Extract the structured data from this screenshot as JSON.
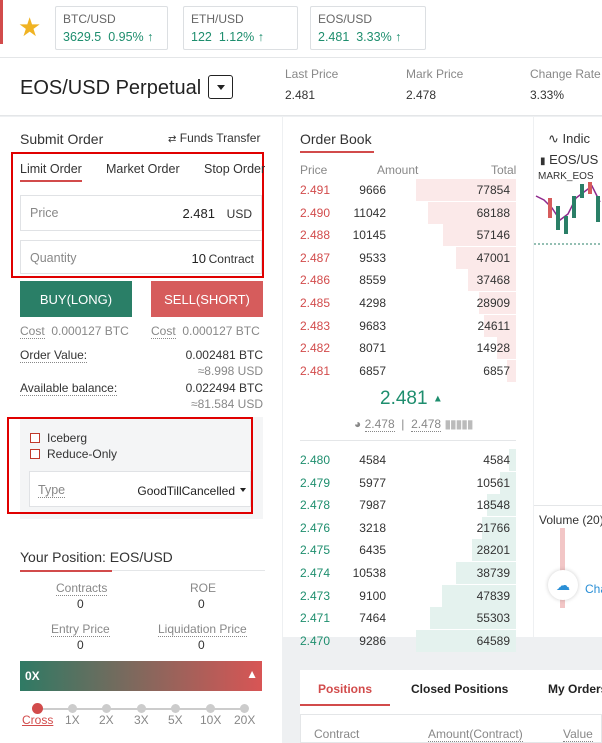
{
  "tickers": [
    {
      "symbol": "BTC/USD",
      "price": "3629.5",
      "change": "0.95%"
    },
    {
      "symbol": "ETH/USD",
      "price": "122",
      "change": "1.12%"
    },
    {
      "symbol": "EOS/USD",
      "price": "2.481",
      "change": "3.33%"
    }
  ],
  "header": {
    "title": "EOS/USD Perpetual",
    "last_price_label": "Last Price",
    "last_price": "2.481",
    "mark_price_label": "Mark Price",
    "mark_price": "2.478",
    "change_rate_label": "Change Rate",
    "change_rate": "3.33%"
  },
  "submit_order": {
    "title": "Submit Order",
    "funds_transfer": "Funds Transfer",
    "tabs": [
      "Limit Order",
      "Market Order",
      "Stop Order"
    ],
    "price_label": "Price",
    "price_value": "2.481",
    "price_unit": "USD",
    "quantity_label": "Quantity",
    "quantity_value": "10",
    "quantity_unit": "Contract",
    "buy_label": "BUY(LONG)",
    "sell_label": "SELL(SHORT)",
    "cost_label": "Cost",
    "buy_cost": "0.000127 BTC",
    "sell_cost": "0.000127 BTC",
    "order_value_label": "Order Value:",
    "order_value": "0.002481 BTC",
    "order_value_usd": "≈8.998 USD",
    "available_label": "Available balance:",
    "available": "0.022494 BTC",
    "available_usd": "≈81.584 USD",
    "iceberg_label": "Iceberg",
    "reduce_only_label": "Reduce-Only",
    "type_label": "Type",
    "type_value": "GoodTillCancelled"
  },
  "position": {
    "title": "Your Position: EOS/USD",
    "contracts_label": "Contracts",
    "contracts": "0",
    "roe_label": "ROE",
    "roe": "0",
    "entry_label": "Entry Price",
    "entry": "0",
    "liq_label": "Liquidation Price",
    "liq": "0",
    "leverage_value": "0X",
    "leverage_stops": [
      "Cross",
      "1X",
      "2X",
      "3X",
      "5X",
      "10X",
      "20X"
    ]
  },
  "order_book": {
    "title": "Order Book",
    "col_price": "Price",
    "col_amount": "Amount",
    "col_total": "Total",
    "asks": [
      {
        "price": "2.491",
        "amount": "9666",
        "total": "77854"
      },
      {
        "price": "2.490",
        "amount": "11042",
        "total": "68188"
      },
      {
        "price": "2.488",
        "amount": "10145",
        "total": "57146"
      },
      {
        "price": "2.487",
        "amount": "9533",
        "total": "47001"
      },
      {
        "price": "2.486",
        "amount": "8559",
        "total": "37468"
      },
      {
        "price": "2.485",
        "amount": "4298",
        "total": "28909"
      },
      {
        "price": "2.483",
        "amount": "9683",
        "total": "24611"
      },
      {
        "price": "2.482",
        "amount": "8071",
        "total": "14928"
      },
      {
        "price": "2.481",
        "amount": "6857",
        "total": "6857"
      }
    ],
    "last_price": "2.481",
    "index_price": "2.478",
    "mark_price": "2.478",
    "bids": [
      {
        "price": "2.480",
        "amount": "4584",
        "total": "4584"
      },
      {
        "price": "2.479",
        "amount": "5977",
        "total": "10561"
      },
      {
        "price": "2.478",
        "amount": "7987",
        "total": "18548"
      },
      {
        "price": "2.476",
        "amount": "3218",
        "total": "21766"
      },
      {
        "price": "2.475",
        "amount": "6435",
        "total": "28201"
      },
      {
        "price": "2.474",
        "amount": "10538",
        "total": "38739"
      },
      {
        "price": "2.473",
        "amount": "9100",
        "total": "47839"
      },
      {
        "price": "2.471",
        "amount": "7464",
        "total": "55303"
      },
      {
        "price": "2.470",
        "amount": "9286",
        "total": "64589"
      }
    ]
  },
  "chart": {
    "indicators_label": "Indic",
    "symbol_label": "EOS/US",
    "mark_label": "MARK_EOS",
    "volume_label": "Volume (20)",
    "cha_label": "Cha"
  },
  "bottom_tabs": {
    "tabs": [
      "Positions",
      "Closed Positions",
      "My Orders"
    ],
    "col_contract": "Contract",
    "col_amount": "Amount(Contract)",
    "col_value": "Value"
  },
  "colors": {
    "buy": "#2a7f67",
    "sell": "#d65c5c",
    "accent_red": "#d24b4b",
    "green_text": "#1e8e6e"
  }
}
